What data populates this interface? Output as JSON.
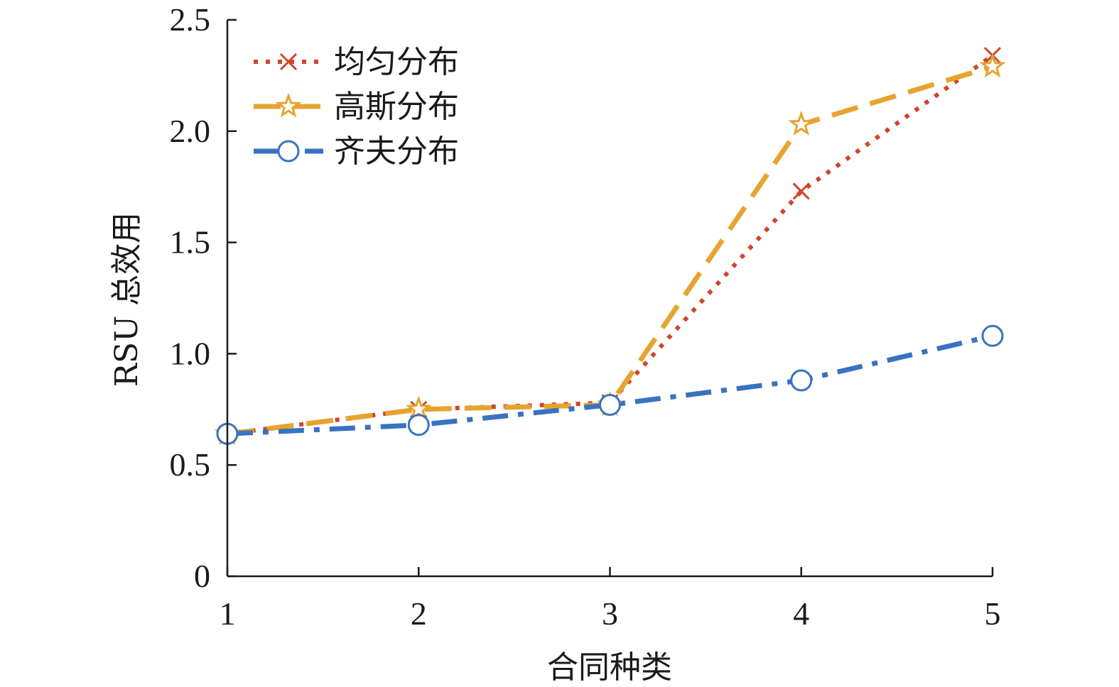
{
  "chart_data": {
    "type": "line",
    "xlabel": "合同种类",
    "ylabel": "RSU 总效用",
    "x": [
      1,
      2,
      3,
      4,
      5
    ],
    "xlim": [
      1,
      5
    ],
    "ylim": [
      0,
      2.5
    ],
    "xticks": [
      "1",
      "2",
      "3",
      "4",
      "5"
    ],
    "yticks": [
      "0",
      "0.5",
      "1.0",
      "1.5",
      "2.0",
      "2.5"
    ],
    "ytick_values": [
      0,
      0.5,
      1.0,
      1.5,
      2.0,
      2.5
    ],
    "grid": false,
    "legend_position": "top-left",
    "series": [
      {
        "name": "均匀分布",
        "values": [
          0.64,
          0.75,
          0.78,
          1.73,
          2.34
        ],
        "color": "#d0452b",
        "line_style": "dotted",
        "marker": "x"
      },
      {
        "name": "高斯分布",
        "values": [
          0.64,
          0.75,
          0.77,
          2.03,
          2.29
        ],
        "color": "#e6a42f",
        "line_style": "dashed",
        "marker": "star"
      },
      {
        "name": "齐夫分布",
        "values": [
          0.64,
          0.68,
          0.77,
          0.88,
          1.08
        ],
        "color": "#3a72c2",
        "line_style": "dash-dot",
        "marker": "circle"
      }
    ]
  }
}
